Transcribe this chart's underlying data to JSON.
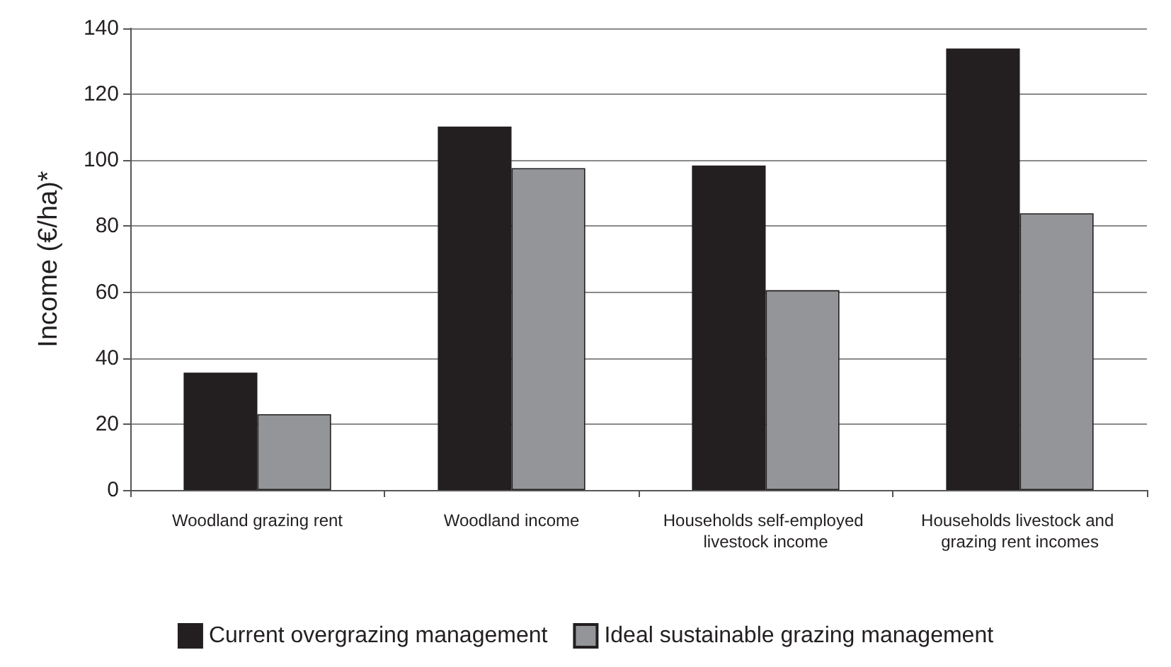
{
  "chart_data": {
    "type": "bar",
    "ylabel": "Income (€/ha)*",
    "categories": [
      "Woodland grazing rent",
      "Woodland income",
      "Households self-employed livestock income",
      "Households livestock and grazing rent incomes"
    ],
    "series": [
      {
        "name": "Current overgrazing management",
        "color": "#231f20",
        "values": [
          35.6,
          110.2,
          98.4,
          133.9
        ]
      },
      {
        "name": "Ideal sustainable grazing management",
        "color": "#939598",
        "values": [
          23,
          97.6,
          60.6,
          83.9
        ]
      }
    ],
    "ylim": [
      0,
      140
    ],
    "yticks": [
      0,
      20,
      40,
      60,
      80,
      100,
      120,
      140
    ],
    "grid": "y",
    "legend": "bottom"
  }
}
